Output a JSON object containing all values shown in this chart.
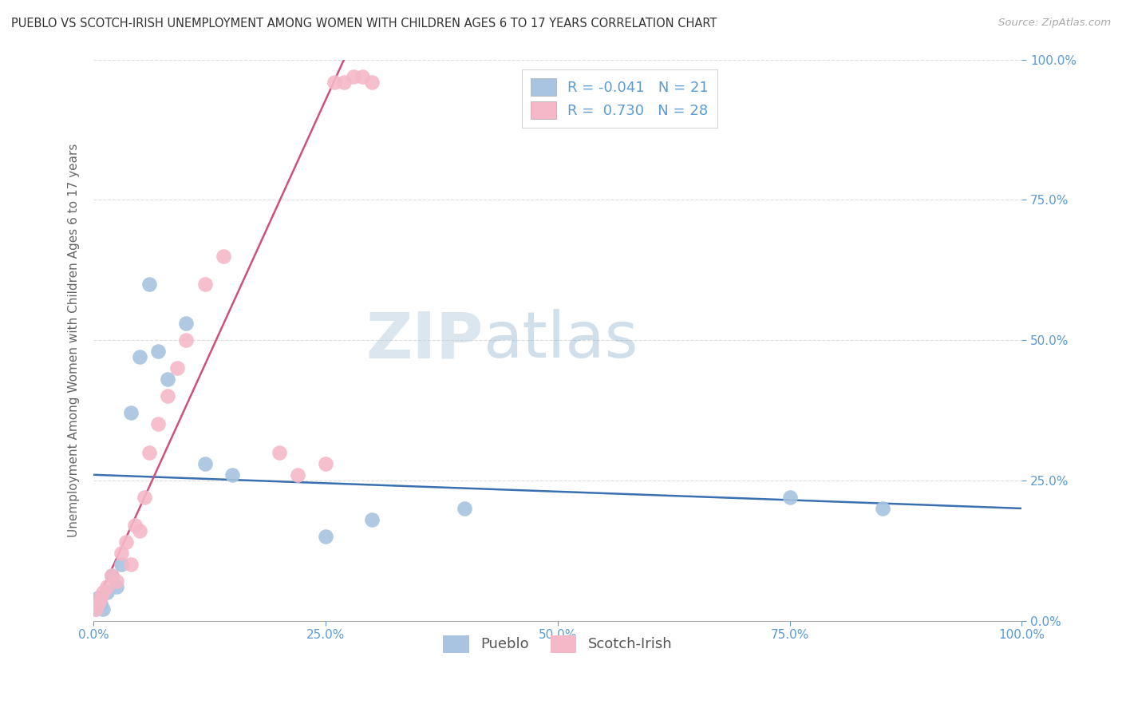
{
  "title": "PUEBLO VS SCOTCH-IRISH UNEMPLOYMENT AMONG WOMEN WITH CHILDREN AGES 6 TO 17 YEARS CORRELATION CHART",
  "source": "Source: ZipAtlas.com",
  "ylabel": "Unemployment Among Women with Children Ages 6 to 17 years",
  "xlim": [
    0,
    100
  ],
  "ylim": [
    0,
    100
  ],
  "pueblo_color": "#a8c4e0",
  "scotch_color": "#f4b8c8",
  "pueblo_line_color": "#3a70b0",
  "scotch_line_color": "#d0507a",
  "pueblo_R": -0.041,
  "pueblo_N": 21,
  "scotch_R": 0.73,
  "scotch_N": 28,
  "pueblo_x": [
    0.3,
    0.5,
    0.8,
    1.0,
    1.5,
    2.0,
    2.5,
    3.0,
    4.0,
    5.0,
    6.0,
    7.0,
    8.0,
    10.0,
    12.0,
    15.0,
    25.0,
    30.0,
    40.0,
    75.0,
    85.0
  ],
  "pueblo_y": [
    2.0,
    4.0,
    3.0,
    2.0,
    5.0,
    8.0,
    6.0,
    10.0,
    37.0,
    47.0,
    60.0,
    48.0,
    43.0,
    53.0,
    28.0,
    26.0,
    15.0,
    18.0,
    20.0,
    22.0,
    20.0
  ],
  "scotch_x": [
    0.3,
    0.5,
    0.8,
    1.0,
    1.5,
    2.0,
    2.5,
    3.0,
    3.5,
    4.0,
    4.5,
    5.0,
    5.5,
    6.0,
    7.0,
    8.0,
    9.0,
    10.0,
    12.0,
    14.0,
    20.0,
    22.0,
    25.0,
    26.0,
    27.0,
    28.0,
    29.0,
    30.0
  ],
  "scotch_y": [
    2.0,
    3.0,
    4.0,
    5.0,
    6.0,
    8.0,
    7.0,
    12.0,
    14.0,
    10.0,
    17.0,
    16.0,
    22.0,
    30.0,
    35.0,
    40.0,
    45.0,
    50.0,
    60.0,
    65.0,
    30.0,
    26.0,
    28.0,
    96.0,
    96.0,
    97.0,
    97.0,
    96.0
  ],
  "watermark_top": "ZIP",
  "watermark_bottom": "atlas",
  "background_color": "#ffffff",
  "grid_color": "#dddddd",
  "legend_label1": "Pueblo",
  "legend_label2": "Scotch-Irish",
  "title_color": "#333333",
  "axis_tick_color": "#5b9bd5",
  "ylabel_color": "#666666"
}
